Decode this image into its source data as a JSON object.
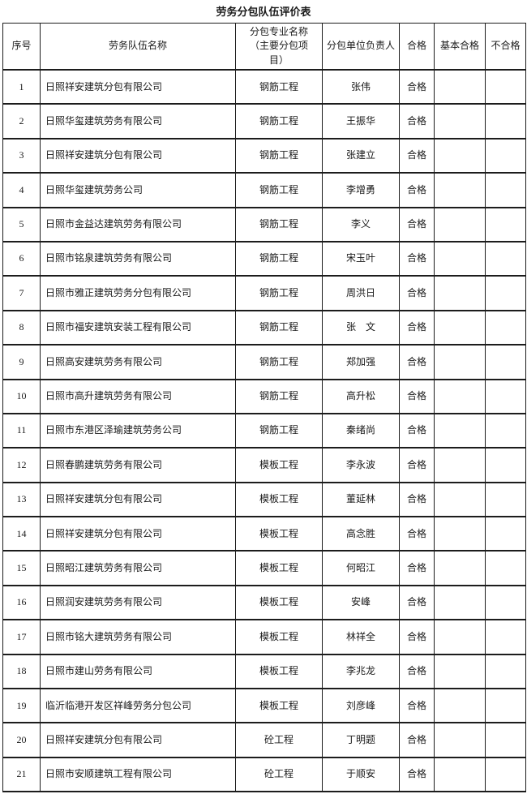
{
  "title": "劳务分包队伍评价表",
  "table": {
    "columns": [
      "序号",
      "劳务队伍名称",
      "分包专业名称\n（主要分包项\n目）",
      "分包单位负责人",
      "合格",
      "基本合格",
      "不合格"
    ],
    "rows": [
      {
        "no": "1",
        "team": "日照祥安建筑分包有限公司",
        "specialty": "钢筋工程",
        "leader": "张伟",
        "qualified": "合格",
        "basic_qualified": "",
        "unqualified": ""
      },
      {
        "no": "2",
        "team": "日照华玺建筑劳务有限公司",
        "specialty": "钢筋工程",
        "leader": "王振华",
        "qualified": "合格",
        "basic_qualified": "",
        "unqualified": ""
      },
      {
        "no": "3",
        "team": "日照祥安建筑分包有限公司",
        "specialty": "钢筋工程",
        "leader": "张建立",
        "qualified": "合格",
        "basic_qualified": "",
        "unqualified": ""
      },
      {
        "no": "4",
        "team": "日照华玺建筑劳务公司",
        "specialty": "钢筋工程",
        "leader": "李增勇",
        "qualified": "合格",
        "basic_qualified": "",
        "unqualified": ""
      },
      {
        "no": "5",
        "team": "日照市金益达建筑劳务有限公司",
        "specialty": "钢筋工程",
        "leader": "李义",
        "qualified": "合格",
        "basic_qualified": "",
        "unqualified": ""
      },
      {
        "no": "6",
        "team": "日照市铭泉建筑劳务有限公司",
        "specialty": "钢筋工程",
        "leader": "宋玉叶",
        "qualified": "合格",
        "basic_qualified": "",
        "unqualified": ""
      },
      {
        "no": "7",
        "team": "日照市雅正建筑劳务分包有限公司",
        "specialty": "钢筋工程",
        "leader": "周洪日",
        "qualified": "合格",
        "basic_qualified": "",
        "unqualified": ""
      },
      {
        "no": "8",
        "team": "日照市福安建筑安装工程有限公司",
        "specialty": "钢筋工程",
        "leader": "张　文",
        "qualified": "合格",
        "basic_qualified": "",
        "unqualified": ""
      },
      {
        "no": "9",
        "team": "日照高安建筑劳务有限公司",
        "specialty": "钢筋工程",
        "leader": "郑加强",
        "qualified": "合格",
        "basic_qualified": "",
        "unqualified": ""
      },
      {
        "no": "10",
        "team": "日照市高升建筑劳务有限公司",
        "specialty": "钢筋工程",
        "leader": "高升松",
        "qualified": "合格",
        "basic_qualified": "",
        "unqualified": ""
      },
      {
        "no": "11",
        "team": "日照市东港区泽瑜建筑劳务公司",
        "specialty": "钢筋工程",
        "leader": "秦绪尚",
        "qualified": "合格",
        "basic_qualified": "",
        "unqualified": ""
      },
      {
        "no": "12",
        "team": "日照春鹏建筑劳务有限公司",
        "specialty": "模板工程",
        "leader": "李永波",
        "qualified": "合格",
        "basic_qualified": "",
        "unqualified": ""
      },
      {
        "no": "13",
        "team": "日照祥安建筑分包有限公司",
        "specialty": "模板工程",
        "leader": "董延林",
        "qualified": "合格",
        "basic_qualified": "",
        "unqualified": ""
      },
      {
        "no": "14",
        "team": "日照祥安建筑分包有限公司",
        "specialty": "模板工程",
        "leader": "高念胜",
        "qualified": "合格",
        "basic_qualified": "",
        "unqualified": ""
      },
      {
        "no": "15",
        "team": "日照昭江建筑劳务有限公司",
        "specialty": "模板工程",
        "leader": "何昭江",
        "qualified": "合格",
        "basic_qualified": "",
        "unqualified": ""
      },
      {
        "no": "16",
        "team": "日照润安建筑劳务有限公司",
        "specialty": "模板工程",
        "leader": "安峰",
        "qualified": "合格",
        "basic_qualified": "",
        "unqualified": ""
      },
      {
        "no": "17",
        "team": "日照市铭大建筑劳务有限公司",
        "specialty": "模板工程",
        "leader": "林祥全",
        "qualified": "合格",
        "basic_qualified": "",
        "unqualified": ""
      },
      {
        "no": "18",
        "team": "日照市建山劳务有限公司",
        "specialty": "模板工程",
        "leader": "李兆龙",
        "qualified": "合格",
        "basic_qualified": "",
        "unqualified": ""
      },
      {
        "no": "19",
        "team": "临沂临港开发区祥峰劳务分包公司",
        "specialty": "模板工程",
        "leader": "刘彦峰",
        "qualified": "合格",
        "basic_qualified": "",
        "unqualified": ""
      },
      {
        "no": "20",
        "team": "日照祥安建筑分包有限公司",
        "specialty": "砼工程",
        "leader": "丁明题",
        "qualified": "合格",
        "basic_qualified": "",
        "unqualified": ""
      },
      {
        "no": "21",
        "team": "日照市安顺建筑工程有限公司",
        "specialty": "砼工程",
        "leader": "于顺安",
        "qualified": "合格",
        "basic_qualified": "",
        "unqualified": ""
      }
    ]
  }
}
